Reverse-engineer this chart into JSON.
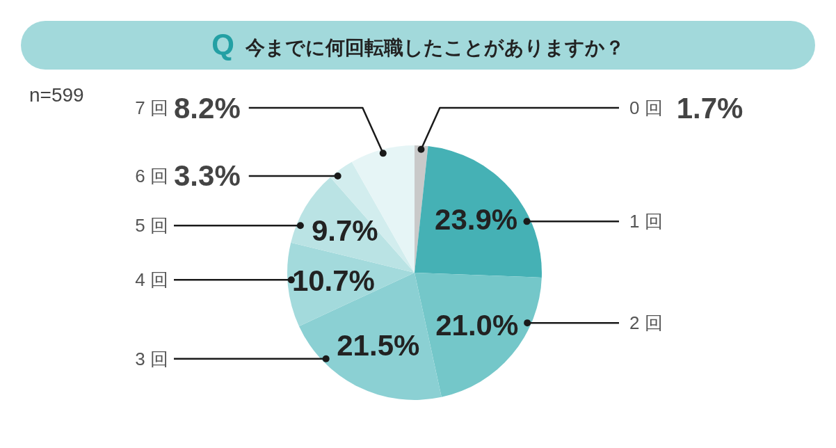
{
  "chart_data": {
    "type": "pie",
    "title": "Q 今までに何回転職したことがありますか？",
    "annotations": [
      "n=599"
    ],
    "categories": [
      "0 回",
      "1 回",
      "2 回",
      "3 回",
      "4 回",
      "5 回",
      "6 回",
      "7 回"
    ],
    "values": [
      1.7,
      23.9,
      21.0,
      21.5,
      10.7,
      9.7,
      3.3,
      8.2
    ],
    "value_labels": [
      "1.7%",
      "23.9%",
      "21.0%",
      "21.5%",
      "10.7%",
      "9.7%",
      "3.3%",
      "8.2%"
    ],
    "colors": [
      "#c9c9c9",
      "#45b1b5",
      "#74c7c9",
      "#8bd0d3",
      "#a3dadc",
      "#bae3e4",
      "#d2edee",
      "#e6f5f6"
    ]
  }
}
